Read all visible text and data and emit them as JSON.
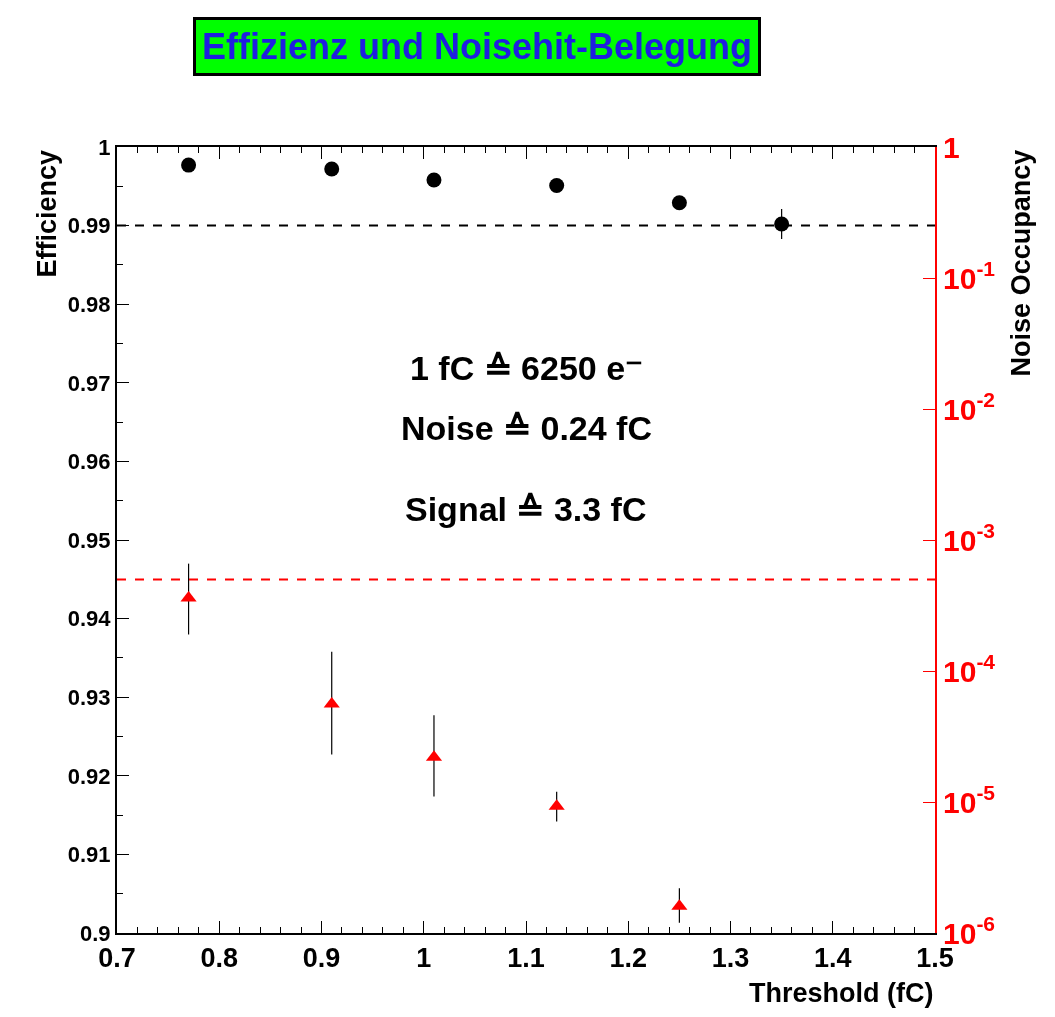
{
  "chart_data": {
    "type": "scatter",
    "title": "Effizienz und Noisehit-Belegung",
    "xlabel": "Threshold (fC)",
    "ylabel": "Efficiency",
    "y2label": "Noise Occupancy",
    "x": [
      0.77,
      0.91,
      1.01,
      1.13,
      1.25,
      1.35
    ],
    "series": [
      {
        "color": "#000000",
        "marker": "circle",
        "values": [
          0.9977,
          0.9972,
          0.9958,
          0.9951,
          0.9929,
          0.9902
        ],
        "errors": [
          null,
          null,
          null,
          null,
          null,
          [
            0.9883,
            0.9921
          ]
        ]
      },
      {
        "color": "#ff0000",
        "marker": "triangle",
        "axis": "y2",
        "x": [
          0.77,
          0.91,
          1.01,
          1.13,
          1.25
        ],
        "values": [
          0.00036,
          5.6e-05,
          2.2e-05,
          9.3e-06,
          1.6e-06
        ],
        "errors": [
          [
            0.00019,
            0.00066
          ],
          [
            2.3e-05,
            0.00014
          ],
          [
            1.1e-05,
            4.6e-05
          ],
          [
            7.1e-06,
            1.2e-05
          ],
          [
            1.2e-06,
            2.2e-06
          ]
        ]
      }
    ],
    "xlim": [
      0.7,
      1.5
    ],
    "xticks": [
      0.7,
      0.8,
      0.9,
      1,
      1.1,
      1.2,
      1.3,
      1.4,
      1.5
    ],
    "ylim": [
      0.9,
      1
    ],
    "yticks": [
      0.9,
      0.91,
      0.92,
      0.93,
      0.94,
      0.95,
      0.96,
      0.97,
      0.98,
      0.99,
      1
    ],
    "y2lim": [
      1e-06,
      1
    ],
    "log": "y2",
    "y2ticks": [
      {
        "value": 1e-06,
        "label": "10$^{-6}$"
      },
      {
        "value": 1e-05,
        "label": "10$^{-5}$"
      },
      {
        "value": 0.0001,
        "label": "10$^{-4}$"
      },
      {
        "value": 0.001,
        "label": "10$^{-3}$"
      },
      {
        "value": 0.01,
        "label": "10$^{-2}$"
      },
      {
        "value": 0.1,
        "label": "10$^{-1}$"
      },
      1
    ],
    "ref_lines": [
      {
        "axis": "y",
        "value": 0.99,
        "color": "#000000",
        "line_style": "dashed"
      },
      {
        "axis": "y2",
        "value": 0.0005,
        "color": "#ff0000",
        "line_style": "dashed"
      }
    ],
    "annotations": [
      "1 fC ≙ 6250 e⁻",
      "Noise ≙ 0.24 fC",
      "Signal ≙ 3.3 fC"
    ]
  }
}
